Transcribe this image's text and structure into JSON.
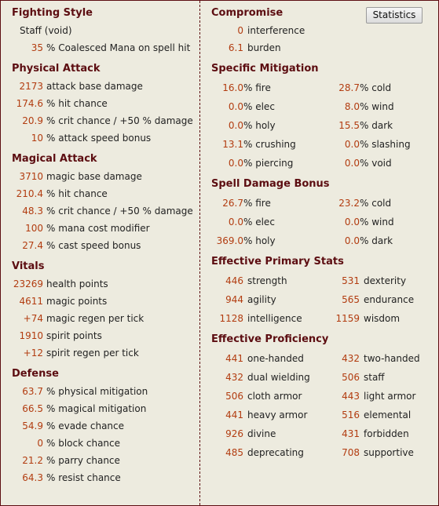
{
  "button": "Statistics",
  "left_column": [
    {
      "title": "Fighting Style",
      "rows": [
        {
          "text": "Staff (void)"
        },
        {
          "value": "35",
          "label": "% Coalesced Mana on spell hit"
        }
      ]
    },
    {
      "title": "Physical Attack",
      "rows": [
        {
          "value": "2173",
          "label": "attack base damage"
        },
        {
          "value": "174.6",
          "label": "% hit chance"
        },
        {
          "value": "20.9",
          "label": "% crit chance / +50 % damage"
        },
        {
          "value": "10",
          "label": "% attack speed bonus"
        }
      ]
    },
    {
      "title": "Magical Attack",
      "rows": [
        {
          "value": "3710",
          "label": "magic base damage"
        },
        {
          "value": "210.4",
          "label": "% hit chance"
        },
        {
          "value": "48.3",
          "label": "% crit chance / +50 % damage"
        },
        {
          "value": "100",
          "label": "% mana cost modifier"
        },
        {
          "value": "27.4",
          "label": "% cast speed bonus"
        }
      ]
    },
    {
      "title": "Vitals",
      "rows": [
        {
          "value": "23269",
          "label": "health points"
        },
        {
          "value": "4611",
          "label": "magic points"
        },
        {
          "value": "+74",
          "label": "magic regen per tick"
        },
        {
          "value": "1910",
          "label": "spirit points"
        },
        {
          "value": "+12",
          "label": "spirit regen per tick"
        }
      ]
    },
    {
      "title": "Defense",
      "rows": [
        {
          "value": "63.7",
          "label": "% physical mitigation"
        },
        {
          "value": "66.5",
          "label": "% magical mitigation"
        },
        {
          "value": "54.9",
          "label": "% evade chance"
        },
        {
          "value": "0",
          "label": "% block chance"
        },
        {
          "value": "21.2",
          "label": "% parry chance"
        },
        {
          "value": "64.3",
          "label": "% resist chance"
        }
      ]
    }
  ],
  "right_column": [
    {
      "title": "Compromise",
      "rows": [
        [
          {
            "value": "0",
            "label": "interference"
          }
        ],
        [
          {
            "value": "6.1",
            "label": "burden"
          }
        ]
      ]
    },
    {
      "title": "Specific Mitigation",
      "rows": [
        [
          {
            "value": "16.0",
            "label": "% fire"
          },
          {
            "value": "28.7",
            "label": "% cold"
          }
        ],
        [
          {
            "value": "0.0",
            "label": "% elec"
          },
          {
            "value": "8.0",
            "label": "% wind"
          }
        ],
        [
          {
            "value": "0.0",
            "label": "% holy"
          },
          {
            "value": "15.5",
            "label": "% dark"
          }
        ],
        [
          {
            "value": "13.1",
            "label": "% crushing"
          },
          {
            "value": "0.0",
            "label": "% slashing"
          }
        ],
        [
          {
            "value": "0.0",
            "label": "% piercing"
          },
          {
            "value": "0.0",
            "label": "% void"
          }
        ]
      ]
    },
    {
      "title": "Spell Damage Bonus",
      "rows": [
        [
          {
            "value": "26.7",
            "label": "% fire"
          },
          {
            "value": "23.2",
            "label": "% cold"
          }
        ],
        [
          {
            "value": "0.0",
            "label": "% elec"
          },
          {
            "value": "0.0",
            "label": "% wind"
          }
        ],
        [
          {
            "value": "369.0",
            "label": "% holy"
          },
          {
            "value": "0.0",
            "label": "% dark"
          }
        ]
      ]
    },
    {
      "title": "Effective Primary Stats",
      "rows": [
        [
          {
            "value": "446",
            "label": "strength"
          },
          {
            "value": "531",
            "label": "dexterity"
          }
        ],
        [
          {
            "value": "944",
            "label": "agility"
          },
          {
            "value": "565",
            "label": "endurance"
          }
        ],
        [
          {
            "value": "1128",
            "label": "intelligence"
          },
          {
            "value": "1159",
            "label": "wisdom"
          }
        ]
      ]
    },
    {
      "title": "Effective Proficiency",
      "rows": [
        [
          {
            "value": "441",
            "label": "one-handed"
          },
          {
            "value": "432",
            "label": "two-handed"
          }
        ],
        [
          {
            "value": "432",
            "label": "dual wielding"
          },
          {
            "value": "506",
            "label": "staff"
          }
        ],
        [
          {
            "value": "506",
            "label": "cloth armor"
          },
          {
            "value": "443",
            "label": "light armor"
          }
        ],
        [
          {
            "value": "441",
            "label": "heavy armor"
          },
          {
            "value": "516",
            "label": "elemental"
          }
        ],
        [
          {
            "value": "926",
            "label": "divine"
          },
          {
            "value": "431",
            "label": "forbidden"
          }
        ],
        [
          {
            "value": "485",
            "label": "deprecating"
          },
          {
            "value": "708",
            "label": "supportive"
          }
        ]
      ]
    }
  ]
}
